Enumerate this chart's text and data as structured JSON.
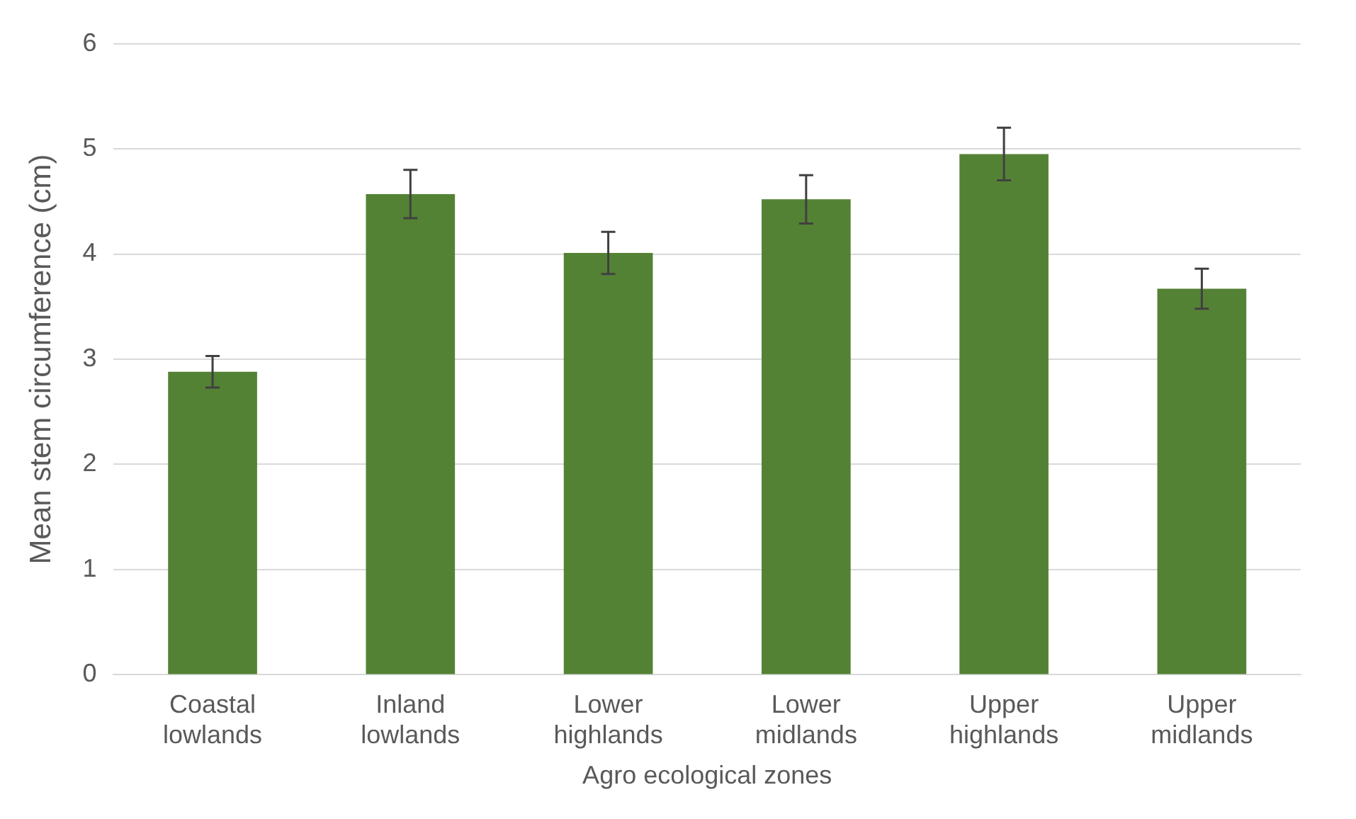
{
  "chart_data": {
    "type": "bar",
    "xlabel": "Agro ecological zones",
    "ylabel": "Mean stem circumference (cm)",
    "categories": [
      "Coastal lowlands",
      "Inland lowlands",
      "Lower highlands",
      "Lower midlands",
      "Upper highlands",
      "Upper midlands"
    ],
    "values": [
      2.88,
      4.57,
      4.01,
      4.52,
      4.95,
      3.67
    ],
    "errors": [
      0.15,
      0.23,
      0.2,
      0.23,
      0.25,
      0.19
    ],
    "color": "#548235",
    "ylim": [
      0,
      6
    ],
    "yticks": [
      0,
      1,
      2,
      3,
      4,
      5,
      6
    ],
    "grid": "y",
    "legend": false
  }
}
